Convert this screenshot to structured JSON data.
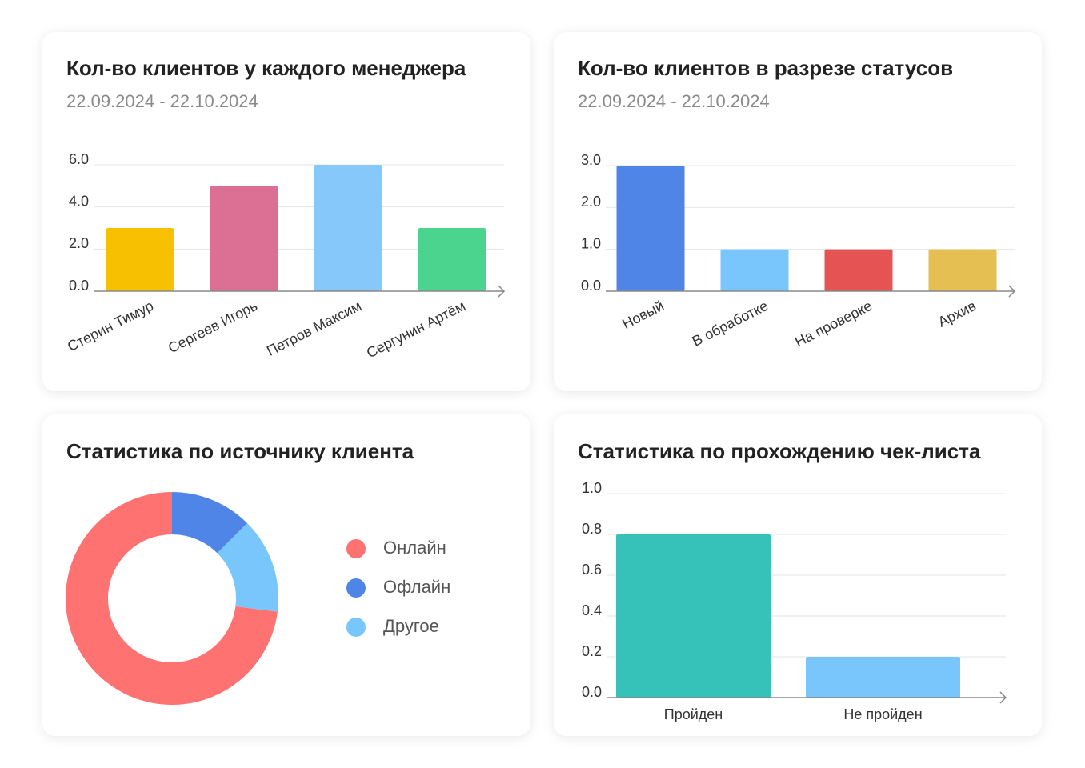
{
  "chart_data": [
    {
      "type": "bar",
      "title": "Кол-во клиентов у каждого менеджера",
      "subtitle": "22.09.2024 - 22.10.2024",
      "categories": [
        "Стерин Тимур",
        "Сергеев Игорь",
        "Петров Максим",
        "Сергунин Артём"
      ],
      "values": [
        3,
        5,
        6,
        3
      ],
      "colors": [
        "#f7c000",
        "#dc7094",
        "#85c8f9",
        "#4bd48e"
      ],
      "ylim": [
        0,
        6
      ],
      "yticks": [
        {
          "value": 0,
          "label": "0.0"
        },
        {
          "value": 2,
          "label": "2.0"
        },
        {
          "value": 4,
          "label": "4.0"
        },
        {
          "value": 6,
          "label": "6.0"
        }
      ],
      "grid": true
    },
    {
      "type": "bar",
      "title": "Кол-во клиентов в разрезе статусов",
      "subtitle": "22.09.2024 - 22.10.2024",
      "categories": [
        "Новый",
        "В обработке",
        "На проверке",
        "Архив"
      ],
      "values": [
        3,
        1,
        1,
        1
      ],
      "colors": [
        "#5085e8",
        "#78c6fc",
        "#e55353",
        "#e5bf52"
      ],
      "ylim": [
        0,
        3
      ],
      "yticks": [
        {
          "value": 0,
          "label": "0.0"
        },
        {
          "value": 1,
          "label": "1.0"
        },
        {
          "value": 2,
          "label": "2.0"
        },
        {
          "value": 3,
          "label": "3.0"
        }
      ],
      "grid": true
    },
    {
      "type": "pie",
      "title": "Статистика по источнику клиента",
      "categories": [
        "Онлайн",
        "Офлайн",
        "Другое"
      ],
      "values": [
        73,
        12.5,
        14.5
      ],
      "colors": [
        "#fe7272",
        "#5085e8",
        "#78c6fc"
      ]
    },
    {
      "type": "bar",
      "title": "Статистика по прохождению чек-листа",
      "categories": [
        "Пройден",
        "Не пройден"
      ],
      "values": [
        0.8,
        0.2
      ],
      "colors": [
        "#37c2b9",
        "#78c6fc"
      ],
      "ylim": [
        0,
        1
      ],
      "yticks": [
        {
          "value": 0,
          "label": "0.0"
        },
        {
          "value": 0.2,
          "label": "0.2"
        },
        {
          "value": 0.4,
          "label": "0.4"
        },
        {
          "value": 0.6,
          "label": "0.6"
        },
        {
          "value": 0.8,
          "label": "0.8"
        },
        {
          "value": 1,
          "label": "1.0"
        }
      ],
      "grid": true
    }
  ]
}
